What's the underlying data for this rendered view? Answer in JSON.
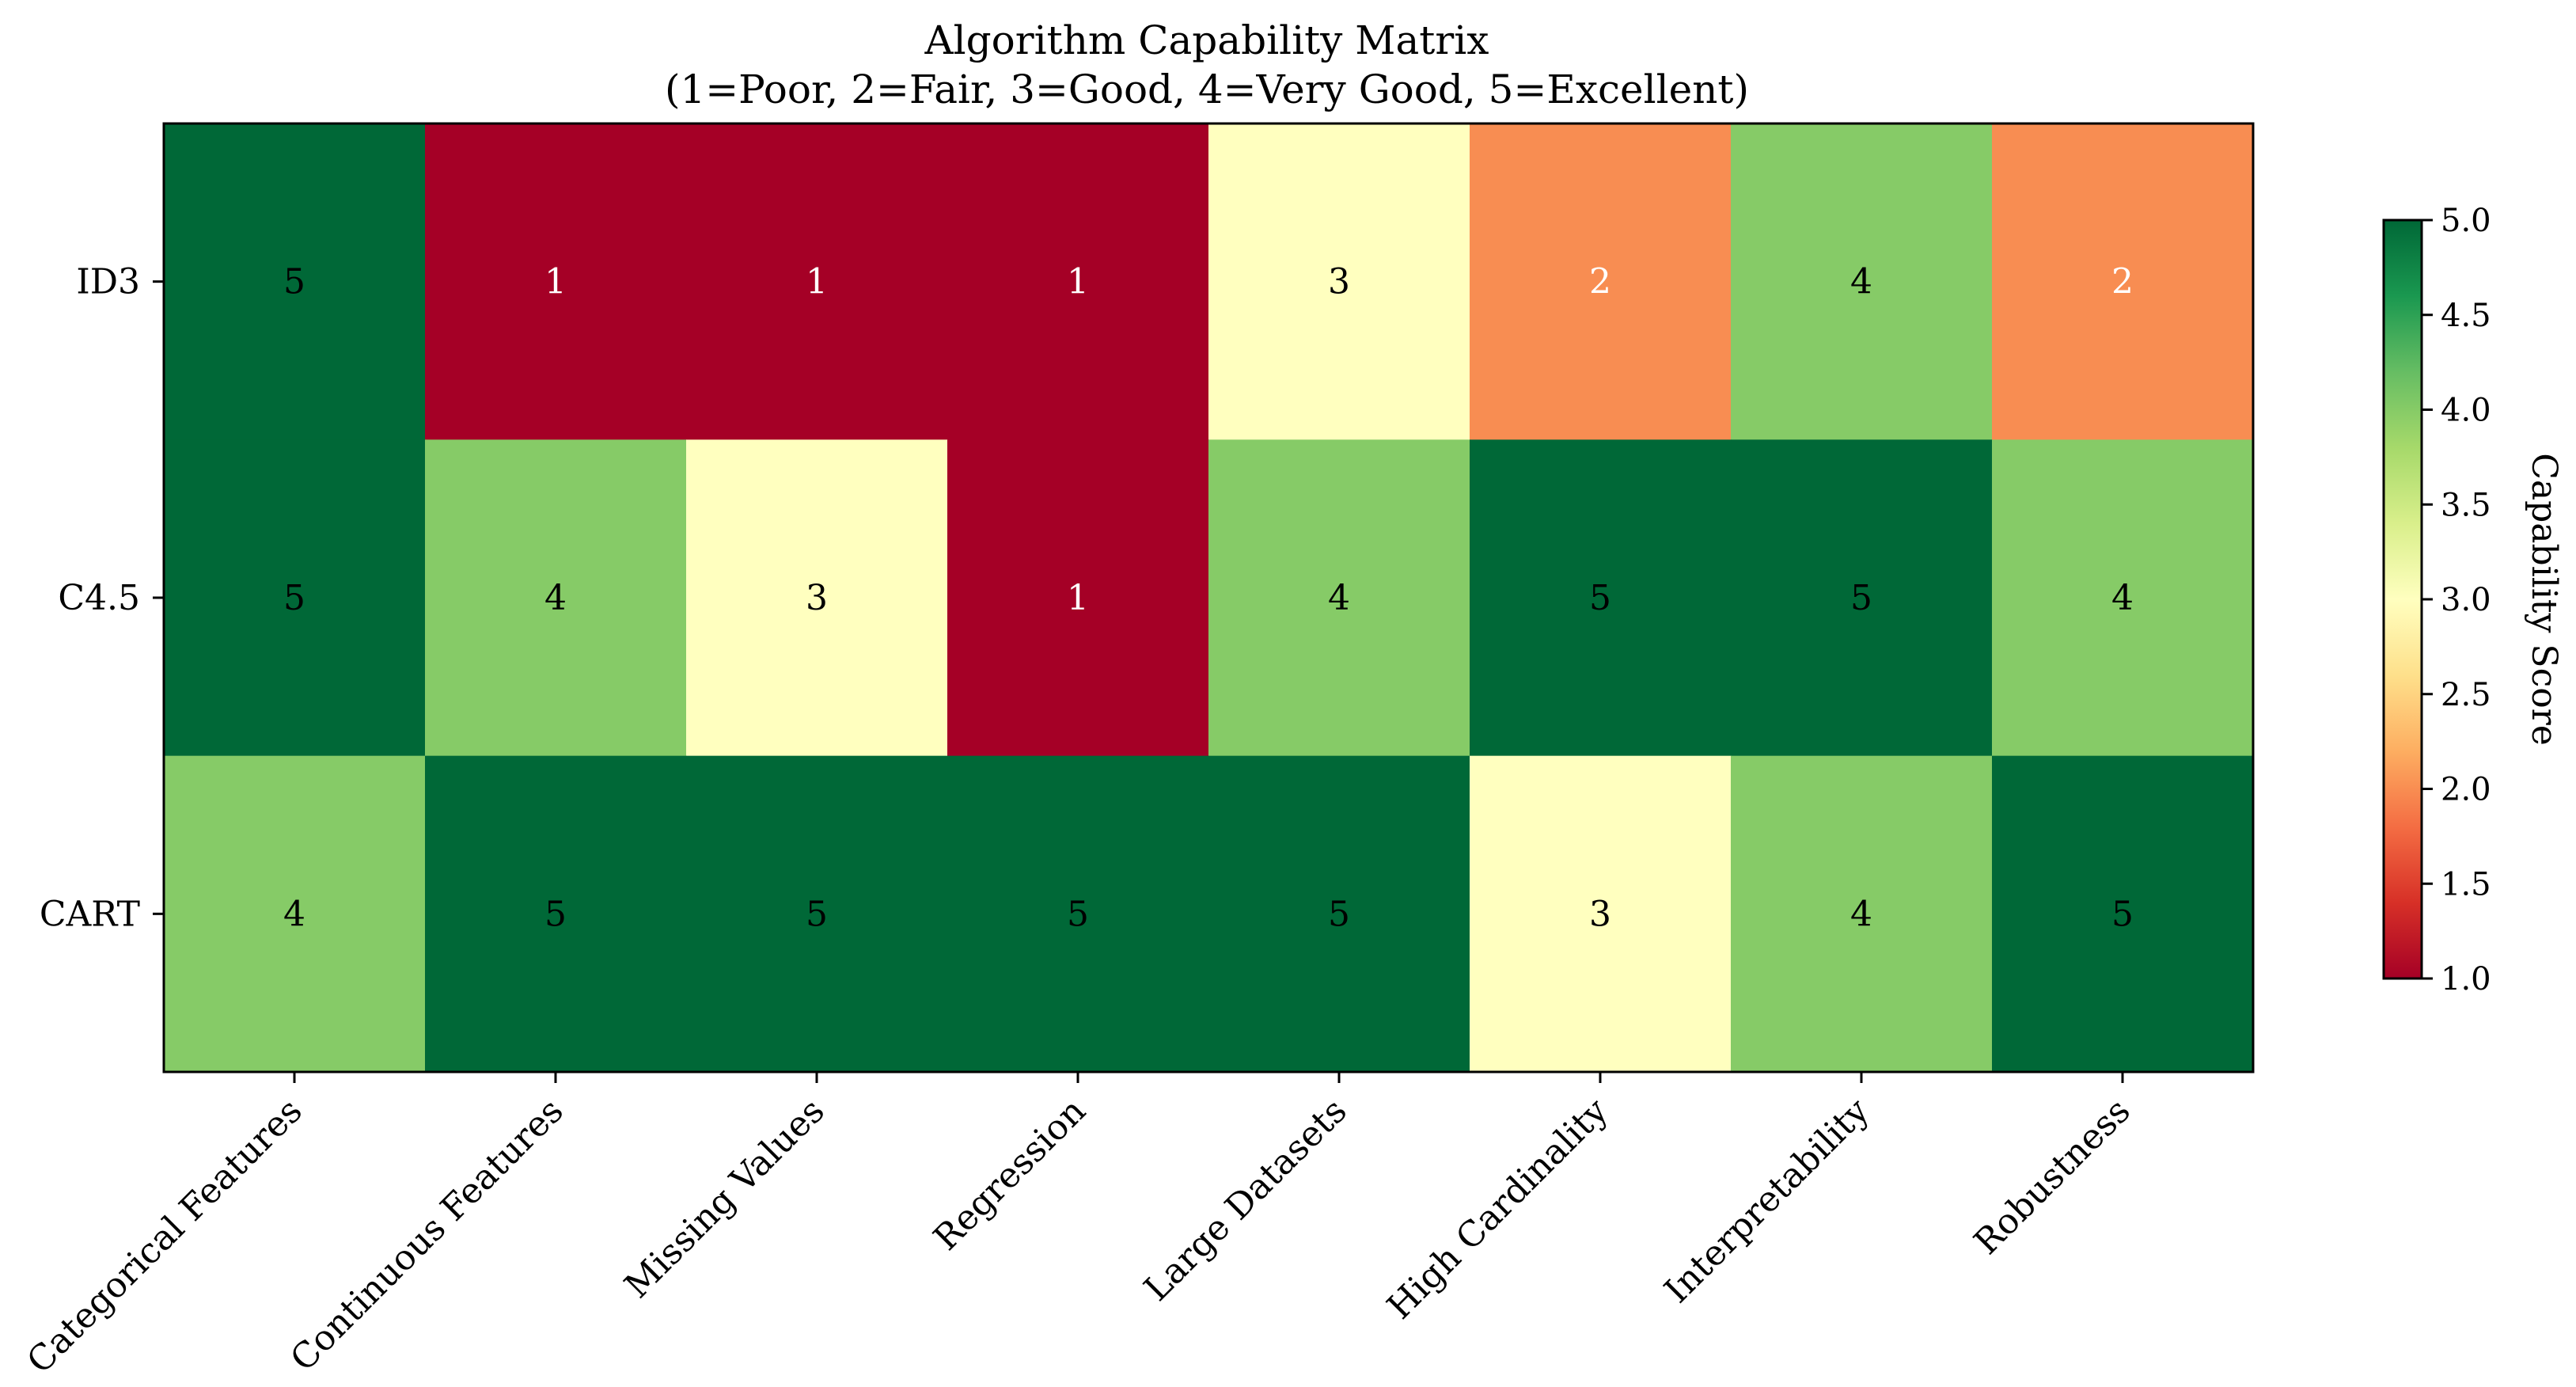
{
  "chart_data": {
    "type": "heatmap",
    "title": "Algorithm Capability Matrix",
    "subtitle": "(1=Poor, 2=Fair, 3=Good, 4=Very Good, 5=Excellent)",
    "rows": [
      "ID3",
      "C4.5",
      "CART"
    ],
    "columns": [
      "Categorical Features",
      "Continuous Features",
      "Missing Values",
      "Regression",
      "Large Datasets",
      "High Cardinality",
      "Interpretability",
      "Robustness"
    ],
    "values": [
      [
        5,
        1,
        1,
        1,
        3,
        2,
        4,
        2
      ],
      [
        5,
        4,
        3,
        1,
        4,
        5,
        5,
        4
      ],
      [
        4,
        5,
        5,
        5,
        5,
        3,
        4,
        5
      ]
    ],
    "colormap": "RdYlGn",
    "color_range": [
      1.0,
      5.0
    ],
    "colorbar": {
      "label": "Capability Score",
      "ticks": [
        "1.0",
        "1.5",
        "2.0",
        "2.5",
        "3.0",
        "3.5",
        "4.0",
        "4.5",
        "5.0"
      ],
      "placement": "right"
    },
    "colors": {
      "1": "#a50026",
      "2": "#f88d52",
      "3": "#ffffbf",
      "4": "#86cb67",
      "5": "#006837"
    },
    "grid": false
  }
}
